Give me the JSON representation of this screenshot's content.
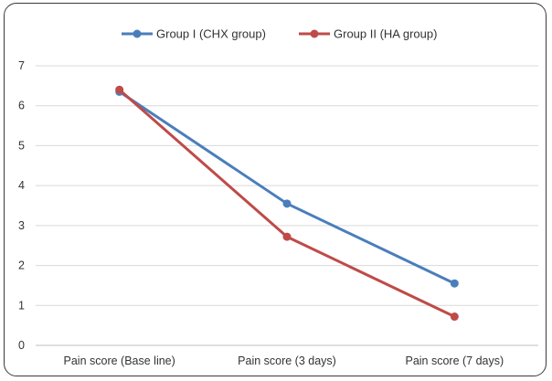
{
  "chart_data": {
    "type": "line",
    "categories": [
      "Pain score (Base line)",
      "Pain score (3 days)",
      "Pain score (7 days)"
    ],
    "series": [
      {
        "name": "Group I (CHX group)",
        "color": "#4a7ebb",
        "values": [
          6.35,
          3.55,
          1.55
        ]
      },
      {
        "name": "Group II (HA group)",
        "color": "#be4b48",
        "values": [
          6.4,
          2.72,
          0.72
        ]
      }
    ],
    "title": "",
    "xlabel": "",
    "ylabel": "",
    "ylim": [
      0,
      7
    ],
    "yticks": [
      0,
      1,
      2,
      3,
      4,
      5,
      6,
      7
    ],
    "grid": true,
    "legend": "top"
  }
}
